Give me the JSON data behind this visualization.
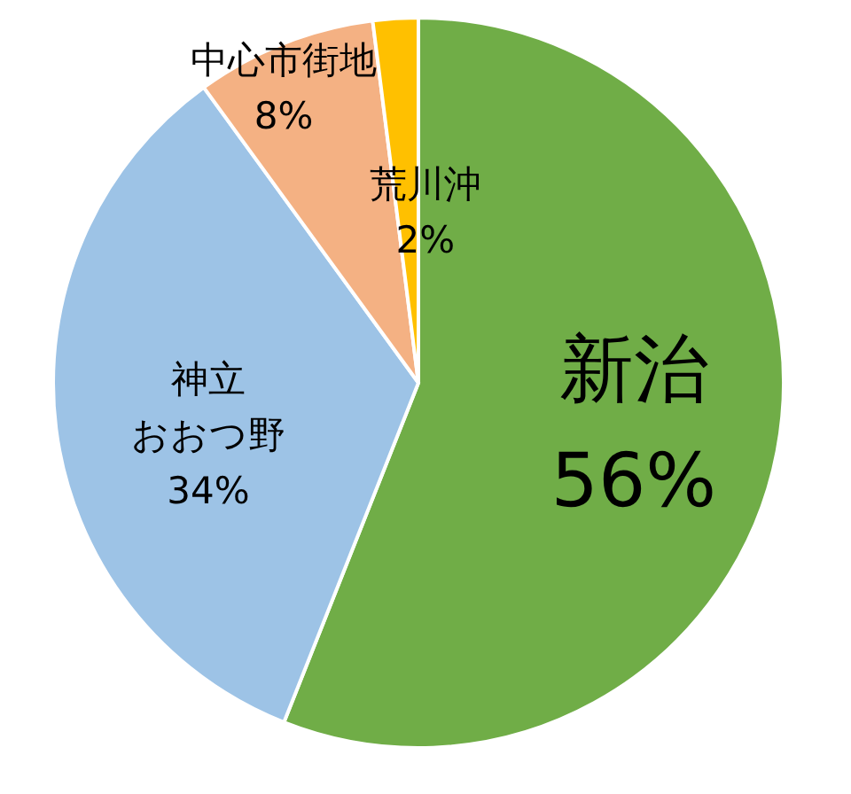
{
  "chart_data": {
    "type": "pie",
    "categories": [
      "新治",
      "神立おおつ野",
      "中心市街地",
      "荒川沖"
    ],
    "values": [
      56,
      34,
      8,
      2
    ],
    "colors": [
      "#70ad47",
      "#9dc3e6",
      "#f4b183",
      "#ffc000"
    ],
    "value_labels": [
      "56%",
      "34%",
      "8%",
      "2%"
    ]
  }
}
